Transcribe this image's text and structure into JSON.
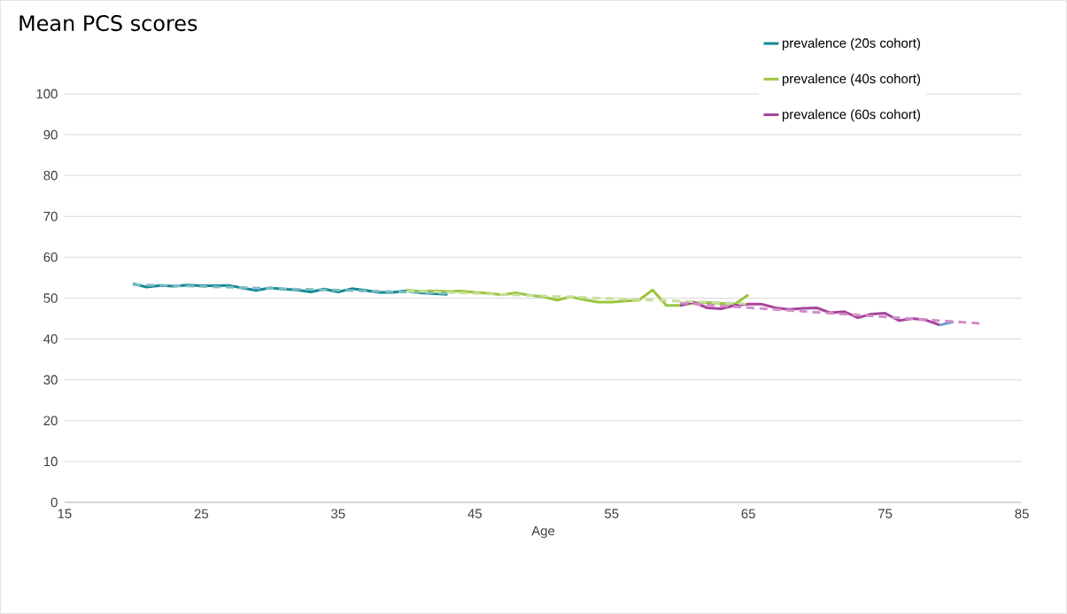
{
  "chart_data": {
    "type": "line",
    "title": "Mean PCS scores",
    "xlabel": "Age",
    "xlim": [
      15,
      85
    ],
    "xticks": [
      15,
      25,
      35,
      45,
      55,
      65,
      75,
      85
    ],
    "ylim": [
      0,
      100
    ],
    "yticks": [
      0,
      10,
      20,
      30,
      40,
      50,
      60,
      70,
      80,
      90,
      100
    ],
    "grid": "y",
    "legend": "top right",
    "marker": "none",
    "series": [
      {
        "name": "prevalence (20s cohort)",
        "color": "#138a96",
        "x": [
          20,
          21,
          22,
          23,
          24,
          25,
          26,
          27,
          28,
          29,
          30,
          31,
          32,
          33,
          34,
          35,
          36,
          37,
          38,
          39,
          40,
          41,
          42,
          43
        ],
        "values": [
          53.5,
          52.7,
          53.1,
          52.9,
          53.2,
          53.0,
          53.0,
          53.1,
          52.5,
          51.9,
          52.5,
          52.2,
          52.0,
          51.5,
          52.2,
          51.5,
          52.3,
          51.9,
          51.4,
          51.4,
          51.8,
          51.3,
          51.1,
          50.9
        ]
      },
      {
        "name": "prevalence (40s cohort)",
        "color": "#9bc53d",
        "x": [
          40,
          41,
          42,
          43,
          44,
          45,
          46,
          47,
          48,
          49,
          50,
          51,
          52,
          53,
          54,
          55,
          56,
          57,
          58,
          59,
          60,
          61,
          62,
          63,
          64,
          65
        ],
        "values": [
          52.0,
          51.6,
          51.8,
          51.6,
          51.7,
          51.4,
          51.2,
          50.8,
          51.3,
          50.7,
          50.3,
          49.5,
          50.3,
          49.6,
          49.0,
          49.0,
          49.3,
          49.5,
          52.0,
          48.2,
          48.2,
          48.8,
          48.9,
          48.7,
          48.5,
          50.8
        ]
      },
      {
        "name": "prevalence (60s cohort)",
        "color": "#a8449c",
        "x": [
          60,
          61,
          62,
          63,
          64,
          65,
          66,
          67,
          68,
          69,
          70,
          71,
          72,
          73,
          74,
          75,
          76,
          77,
          78,
          79
        ],
        "values": [
          48.2,
          49.0,
          47.6,
          47.4,
          48.2,
          48.5,
          48.5,
          47.6,
          47.2,
          47.5,
          47.6,
          46.4,
          46.7,
          45.2,
          46.1,
          46.3,
          44.5,
          45.0,
          44.6,
          43.4
        ]
      },
      {
        "color": "#6a9fd0",
        "x": [
          79,
          80
        ],
        "values": [
          43.4,
          44.2
        ]
      },
      {
        "color": "#7fbcc2",
        "line_style": "dashed",
        "x": [
          20,
          43
        ],
        "values": [
          53.3,
          51.2
        ]
      },
      {
        "color": "#c5df9a",
        "line_style": "dashed",
        "x": [
          40,
          65
        ],
        "values": [
          51.8,
          48.6
        ]
      },
      {
        "color": "#d08fc8",
        "line_style": "dashed",
        "x": [
          60,
          82
        ],
        "values": [
          48.8,
          43.8
        ]
      }
    ]
  }
}
